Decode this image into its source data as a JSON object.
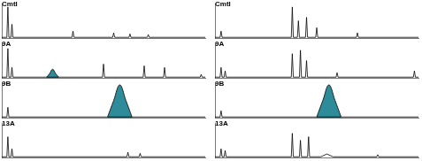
{
  "chart_data": [
    {
      "type": "line",
      "title": "Cmtl",
      "xlim": [
        0,
        100
      ],
      "ylim": [
        0,
        100
      ],
      "grid": false,
      "tick_labels": false,
      "series": [
        {
          "type": "line",
          "color": "#000000",
          "x": [
            0,
            2.5,
            3,
            3.5,
            4.5,
            5,
            5.5,
            34.5,
            35,
            35.5,
            54.5,
            55,
            55.5,
            62.5,
            63,
            63.5,
            71.5,
            72,
            72.5,
            100
          ],
          "values": [
            2,
            2,
            90,
            2,
            2,
            40,
            2,
            2,
            20,
            2,
            2,
            15,
            2,
            2,
            12,
            2,
            2,
            10,
            2,
            2
          ]
        }
      ]
    },
    {
      "type": "line",
      "title": "9A",
      "xlim": [
        0,
        100
      ],
      "ylim": [
        0,
        100
      ],
      "grid": false,
      "tick_labels": false,
      "series": [
        {
          "type": "line",
          "color": "#000000",
          "x": [
            0,
            2.5,
            3,
            3.5,
            4.5,
            5,
            5.5,
            49.5,
            50,
            50.5,
            69.5,
            70,
            70.5,
            79.5,
            80,
            80.5,
            97.5,
            98,
            98.5,
            100
          ],
          "values": [
            2,
            2,
            85,
            2,
            2,
            30,
            2,
            2,
            40,
            2,
            2,
            35,
            2,
            2,
            30,
            2,
            2,
            10,
            2,
            2
          ]
        },
        {
          "type": "area",
          "color": "#2e8b9a",
          "x": [
            22,
            23.5,
            25,
            26.5,
            28
          ],
          "values": [
            2,
            12,
            25,
            12,
            2
          ]
        }
      ]
    },
    {
      "type": "line",
      "title": "9B",
      "xlim": [
        0,
        100
      ],
      "ylim": [
        0,
        100
      ],
      "grid": false,
      "tick_labels": false,
      "series": [
        {
          "type": "line",
          "color": "#000000",
          "x": [
            0,
            2.5,
            3,
            3.5,
            100
          ],
          "values": [
            2,
            2,
            30,
            2,
            2
          ]
        },
        {
          "type": "area",
          "color": "#2e8b9a",
          "x": [
            52,
            55,
            58,
            61,
            64
          ],
          "values": [
            2,
            50,
            95,
            50,
            2
          ]
        }
      ]
    },
    {
      "type": "line",
      "title": "13A",
      "xlim": [
        0,
        100
      ],
      "ylim": [
        0,
        100
      ],
      "grid": false,
      "tick_labels": false,
      "series": [
        {
          "type": "line",
          "color": "#000000",
          "x": [
            0,
            2.5,
            3,
            3.5,
            4.5,
            5,
            5.5,
            61.5,
            62,
            62.5,
            67.5,
            68,
            68.5,
            100
          ],
          "values": [
            2,
            2,
            60,
            2,
            2,
            25,
            2,
            2,
            15,
            2,
            2,
            12,
            2,
            2
          ]
        }
      ]
    },
    {
      "type": "line",
      "title": "Cmtl",
      "xlim": [
        0,
        100
      ],
      "ylim": [
        0,
        100
      ],
      "grid": false,
      "tick_labels": false,
      "series": [
        {
          "type": "line",
          "color": "#000000",
          "x": [
            0,
            2.5,
            3,
            3.5,
            37.5,
            38,
            38.5,
            40.5,
            41,
            41.5,
            44.5,
            45,
            45.5,
            49.5,
            50,
            50.5,
            69.5,
            70,
            70.5,
            100
          ],
          "values": [
            2,
            2,
            20,
            2,
            2,
            90,
            2,
            2,
            50,
            2,
            2,
            60,
            2,
            2,
            30,
            2,
            2,
            15,
            2,
            2
          ]
        }
      ]
    },
    {
      "type": "line",
      "title": "9A",
      "xlim": [
        0,
        100
      ],
      "ylim": [
        0,
        100
      ],
      "grid": false,
      "tick_labels": false,
      "series": [
        {
          "type": "line",
          "color": "#000000",
          "x": [
            0,
            2.5,
            3,
            3.5,
            4.5,
            5,
            5.5,
            37.5,
            38,
            38.5,
            41.5,
            42,
            42.5,
            44.5,
            45,
            45.5,
            59.5,
            60,
            60.5,
            97.5,
            98,
            98.5,
            100
          ],
          "values": [
            2,
            2,
            30,
            2,
            2,
            20,
            2,
            2,
            70,
            2,
            2,
            80,
            2,
            2,
            50,
            2,
            2,
            15,
            2,
            2,
            20,
            2,
            2
          ]
        }
      ]
    },
    {
      "type": "line",
      "title": "9B",
      "xlim": [
        0,
        100
      ],
      "ylim": [
        0,
        100
      ],
      "grid": false,
      "tick_labels": false,
      "series": [
        {
          "type": "line",
          "color": "#000000",
          "x": [
            0,
            2.5,
            3,
            3.5,
            100
          ],
          "values": [
            2,
            2,
            20,
            2,
            2
          ]
        },
        {
          "type": "area",
          "color": "#2e8b9a",
          "x": [
            50,
            53,
            56,
            59,
            62
          ],
          "values": [
            2,
            50,
            95,
            50,
            2
          ]
        }
      ]
    },
    {
      "type": "line",
      "title": "13A",
      "xlim": [
        0,
        100
      ],
      "ylim": [
        0,
        100
      ],
      "grid": false,
      "tick_labels": false,
      "series": [
        {
          "type": "line",
          "color": "#000000",
          "x": [
            0,
            2.5,
            3,
            3.5,
            4.5,
            5,
            5.5,
            37.5,
            38,
            38.5,
            41.5,
            42,
            42.5,
            45.5,
            46,
            46.5,
            52,
            55,
            58,
            79.5,
            80,
            80.5,
            100
          ],
          "values": [
            2,
            2,
            25,
            2,
            2,
            20,
            2,
            2,
            70,
            2,
            2,
            50,
            2,
            2,
            60,
            2,
            2,
            10,
            2,
            2,
            8,
            2,
            2
          ]
        }
      ]
    }
  ]
}
